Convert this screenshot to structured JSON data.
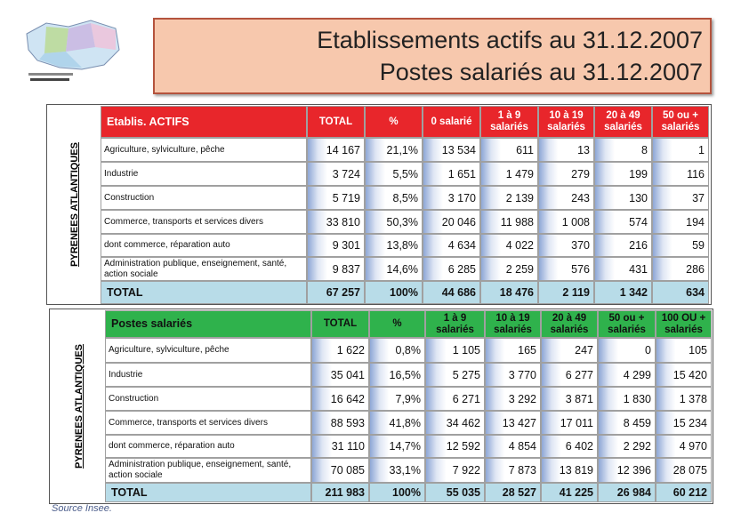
{
  "header": {
    "title_line1": "Etablissements actifs au 31.12.2007",
    "title_line2": "Postes salariés au 31.12.2007"
  },
  "table1": {
    "side_label": "PYRENEES ATLANTIQUES",
    "columns": [
      "Etablis. ACTIFS",
      "TOTAL",
      "%",
      "0 salarié",
      "1 à 9 salariés",
      "10 à 19 salariés",
      "20 à 49 salariés",
      "50 ou + salariés"
    ],
    "rows": [
      [
        "Agriculture, sylviculture, pêche",
        "14 167",
        "21,1%",
        "13 534",
        "611",
        "13",
        "8",
        "1"
      ],
      [
        "Industrie",
        "3 724",
        "5,5%",
        "1 651",
        "1 479",
        "279",
        "199",
        "116"
      ],
      [
        "Construction",
        "5 719",
        "8,5%",
        "3 170",
        "2 139",
        "243",
        "130",
        "37"
      ],
      [
        "Commerce, transports et services divers",
        "33 810",
        "50,3%",
        "20 046",
        "11 988",
        "1 008",
        "574",
        "194"
      ],
      [
        "dont commerce, réparation auto",
        "9 301",
        "13,8%",
        "4 634",
        "4 022",
        "370",
        "216",
        "59"
      ],
      [
        "Administration publique, enseignement, santé, action sociale",
        "9 837",
        "14,6%",
        "6 285",
        "2 259",
        "576",
        "431",
        "286"
      ],
      [
        "TOTAL",
        "67 257",
        "100%",
        "44 686",
        "18 476",
        "2 119",
        "1 342",
        "634"
      ]
    ]
  },
  "table2": {
    "side_label": "PYRENEES ATLANTIQUES",
    "columns": [
      "Postes salariés",
      "TOTAL",
      "%",
      "1 à 9 salariés",
      "10 à 19 salariés",
      "20 à 49 salariés",
      "50 ou + salariés",
      "100 OU + salariés"
    ],
    "rows": [
      [
        "Agriculture, sylviculture, pêche",
        "1 622",
        "0,8%",
        "1 105",
        "165",
        "247",
        "0",
        "105"
      ],
      [
        "Industrie",
        "35 041",
        "16,5%",
        "5 275",
        "3 770",
        "6 277",
        "4 299",
        "15 420"
      ],
      [
        "Construction",
        "16 642",
        "7,9%",
        "6 271",
        "3 292",
        "3 871",
        "1 830",
        "1 378"
      ],
      [
        "Commerce, transports et services divers",
        "88 593",
        "41,8%",
        "34 462",
        "13 427",
        "17 011",
        "8 459",
        "15 234"
      ],
      [
        "dont commerce, réparation auto",
        "31 110",
        "14,7%",
        "12 592",
        "4 854",
        "6 402",
        "2 292",
        "4 970"
      ],
      [
        "Administration publique, enseignement, santé, action sociale",
        "70 085",
        "33,1%",
        "7 922",
        "7 873",
        "13 819",
        "12 396",
        "28 075"
      ],
      [
        "TOTAL",
        "211 983",
        "100%",
        "55 035",
        "28 527",
        "41 225",
        "26 984",
        "60 212"
      ]
    ]
  },
  "footer": {
    "source": "Source Insee."
  }
}
